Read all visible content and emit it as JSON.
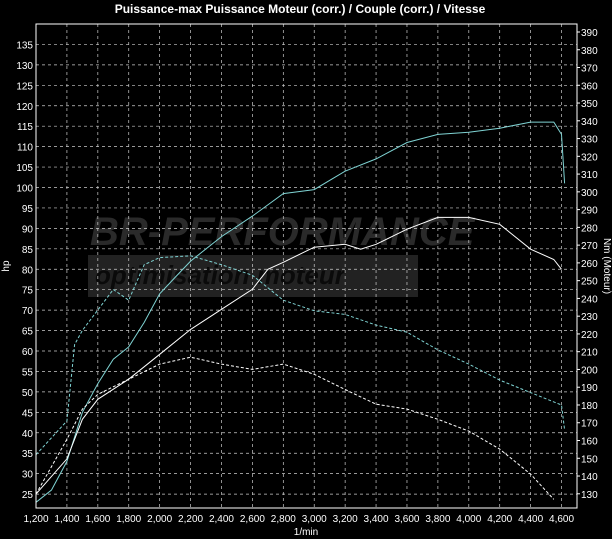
{
  "chart_data": {
    "type": "line",
    "title": "Puissance-max Puissance Moteur (corr.) / Couple (corr.) / Vitesse",
    "xlabel": "1/min",
    "ylabel": "hp",
    "y2label": "Nm (Moteur)",
    "xlim": [
      1200,
      4700
    ],
    "ylim": [
      21.6,
      140
    ],
    "y2lim": [
      122,
      394.5
    ],
    "xticks": [
      1200,
      1400,
      1600,
      1800,
      2000,
      2200,
      2400,
      2600,
      2800,
      3000,
      3200,
      3400,
      3600,
      3800,
      4000,
      4200,
      4400,
      4600
    ],
    "xtick_labels": [
      "1,200",
      "1,400",
      "1,600",
      "1,800",
      "2,000",
      "2,200",
      "2,400",
      "2,600",
      "2,800",
      "3,000",
      "3,200",
      "3,400",
      "3,600",
      "3,800",
      "4,000",
      "4,200",
      "4,400",
      "4,600"
    ],
    "yticks": [
      25,
      30,
      35,
      40,
      45,
      50,
      55,
      60,
      65,
      70,
      75,
      80,
      85,
      90,
      95,
      100,
      105,
      110,
      115,
      120,
      125,
      130,
      135
    ],
    "y2ticks": [
      130,
      140,
      150,
      160,
      170,
      180,
      190,
      200,
      210,
      220,
      230,
      240,
      250,
      260,
      270,
      280,
      290,
      300,
      310,
      320,
      330,
      340,
      350,
      360,
      370,
      380,
      390
    ],
    "grid": true,
    "watermark": {
      "line1": "BR-PERFORMANCE",
      "line2": "optimisation moteur"
    },
    "colors": {
      "cyan": "#7fd3d3",
      "white": "#ffffff",
      "grid": "#cccccc"
    },
    "series": [
      {
        "axis": "left",
        "color": "#7fd3d3",
        "dash": false,
        "x": [
          1200,
          1300,
          1400,
          1500,
          1600,
          1700,
          1800,
          1900,
          2000,
          2100,
          2200,
          2400,
          2600,
          2800,
          3000,
          3200,
          3400,
          3600,
          3800,
          4000,
          4200,
          4400,
          4550,
          4600,
          4620
        ],
        "y": [
          23,
          26,
          33,
          45,
          52,
          58,
          61,
          67,
          74,
          78,
          82,
          88,
          93,
          98.5,
          99.5,
          104,
          107,
          111,
          113,
          113.5,
          114.5,
          116,
          116,
          113,
          101
        ]
      },
      {
        "axis": "right",
        "color": "#7fd3d3",
        "dash": true,
        "x": [
          1200,
          1400,
          1450,
          1500,
          1700,
          1800,
          1900,
          2000,
          2200,
          2400,
          2600,
          2800,
          3000,
          3200,
          3400,
          3600,
          3800,
          4000,
          4200,
          4400,
          4600,
          4620
        ],
        "y": [
          152,
          171,
          214,
          222,
          245,
          239,
          259,
          263,
          264,
          259,
          253,
          239,
          233,
          231,
          225,
          221,
          211,
          203,
          194,
          187,
          180,
          166
        ]
      },
      {
        "axis": "left",
        "color": "#ffffff",
        "dash": false,
        "x": [
          1200,
          1400,
          1500,
          1600,
          1800,
          2000,
          2200,
          2400,
          2600,
          2700,
          2800,
          3000,
          3200,
          3300,
          3400,
          3600,
          3800,
          4000,
          4200,
          4400,
          4550,
          4600
        ],
        "y": [
          25,
          33.6,
          43.3,
          48.2,
          53.1,
          59.2,
          65.3,
          70.2,
          75.1,
          80,
          81.7,
          85.4,
          86.1,
          84.9,
          86.1,
          89.8,
          92.7,
          92.7,
          91,
          84.9,
          82.4,
          80
        ]
      },
      {
        "axis": "left",
        "color": "#ffffff",
        "dash": true,
        "x": [
          1200,
          1400,
          1500,
          1600,
          1800,
          2000,
          2200,
          2400,
          2600,
          2800,
          3000,
          3200,
          3400,
          3600,
          3800,
          4000,
          4200,
          4400,
          4550
        ],
        "y": [
          25,
          38.4,
          45.8,
          49.4,
          53.1,
          56.8,
          58.5,
          56.8,
          55.5,
          56.8,
          54.3,
          50.6,
          47,
          45.8,
          43.3,
          40.4,
          36,
          29.9,
          23.7
        ]
      }
    ]
  }
}
